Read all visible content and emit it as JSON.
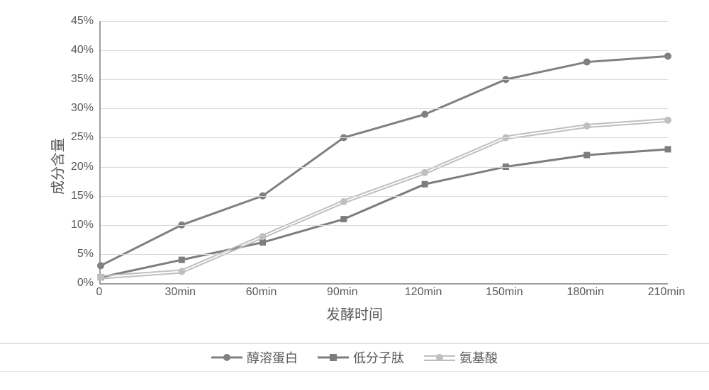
{
  "chart": {
    "type": "line",
    "ylabel": "成分含量",
    "xlabel": "发酵时间",
    "ylabel_fontsize": 20,
    "xlabel_fontsize": 20,
    "tick_fontsize": 16,
    "background_color": "#ffffff",
    "grid_color": "#d9d9d9",
    "axis_color": "#9e9e9e",
    "ylim": [
      0,
      45
    ],
    "ytick_step": 5,
    "ytick_labels": [
      "0%",
      "5%",
      "10%",
      "15%",
      "20%",
      "25%",
      "30%",
      "35%",
      "40%",
      "45%"
    ],
    "categories": [
      "0",
      "30min",
      "60min",
      "90min",
      "120min",
      "150min",
      "180min",
      "210min"
    ],
    "series": [
      {
        "name": "醇溶蛋白",
        "color": "#808080",
        "line_width": 3,
        "line_style": "solid",
        "marker": "circle",
        "marker_size": 9,
        "marker_fill": "#808080",
        "values": [
          3,
          10,
          15,
          25,
          29,
          35,
          38,
          39
        ]
      },
      {
        "name": "低分子肽",
        "color": "#7d7d7d",
        "line_width": 3,
        "line_style": "solid",
        "marker": "square",
        "marker_size": 8,
        "marker_fill": "#7d7d7d",
        "values": [
          1,
          4,
          7,
          11,
          17,
          20,
          22,
          23
        ]
      },
      {
        "name": "氨基酸",
        "color": "#bfbfbf",
        "line_width": 2,
        "line_style": "double",
        "marker": "circle",
        "marker_size": 9,
        "marker_fill": "#bfbfbf",
        "values": [
          1,
          2,
          8,
          14,
          19,
          25,
          27,
          28
        ]
      }
    ],
    "legend": {
      "position": "bottom",
      "fontsize": 18,
      "border_color": "#d9d9d9"
    }
  }
}
